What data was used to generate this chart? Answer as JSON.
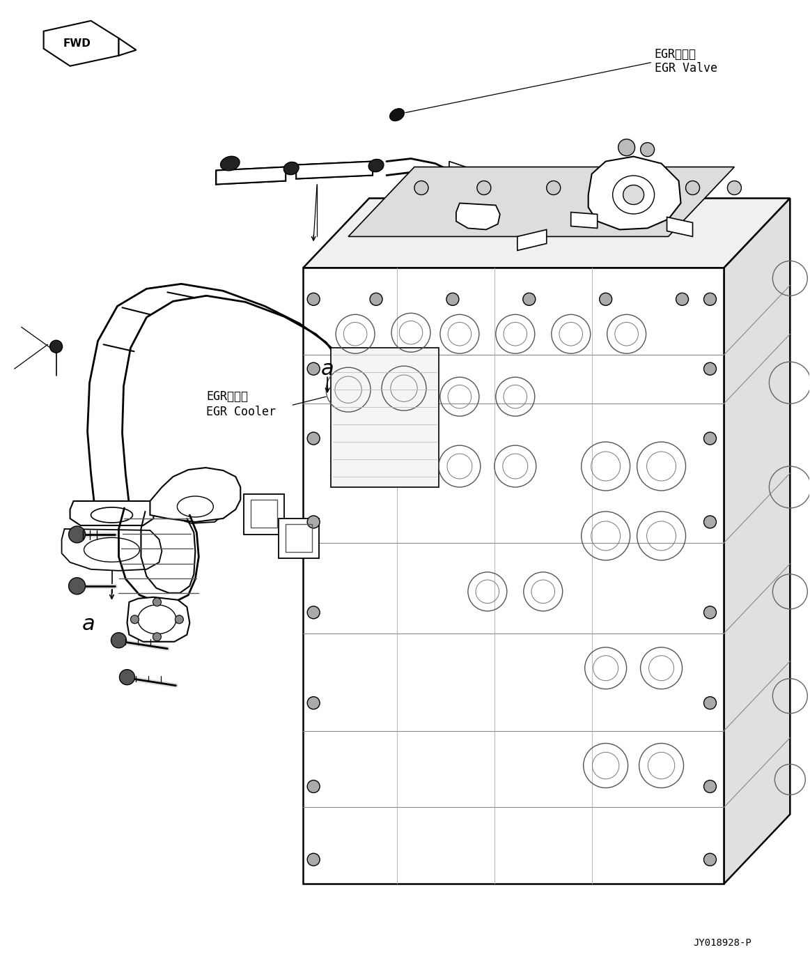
{
  "figure_width": 11.63,
  "figure_height": 13.99,
  "dpi": 100,
  "background_color": "#ffffff",
  "watermark": "JY018928-P",
  "egr_valve_jp": "EGRバルブ",
  "egr_valve_en": "EGR Valve",
  "egr_cooler_jp": "EGRクーラ",
  "egr_cooler_en": "EGR Cooler",
  "line_color": "#000000",
  "lw_main": 1.5,
  "lw_thin": 0.7,
  "lw_thick": 2.2
}
